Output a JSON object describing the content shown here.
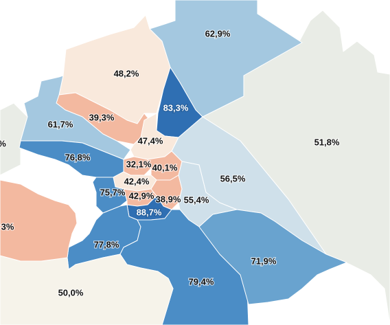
{
  "colors": {
    "neutral_gray": "#e9ece6",
    "neutral_cream": "#f6f3ea",
    "peach_light": "#f9e9dc",
    "salmon": "#f3b9a0",
    "light_blue": "#cfe0ea",
    "sky_blue": "#a4c8e0",
    "mid_blue": "#69a3cf",
    "blue": "#4b8dc6",
    "deep_blue": "#2f6fb3"
  },
  "districts": [
    {
      "id": "north-ne",
      "label": "62,9%",
      "color": "#a4c8e0",
      "text": "dark"
    },
    {
      "id": "east-large",
      "label": "51,8%",
      "color": "#e9ece6",
      "text": "dark"
    },
    {
      "id": "north-nw",
      "label": "48,2%",
      "color": "#f9e9dc",
      "text": "dark"
    },
    {
      "id": "north-center",
      "label": "83,3%",
      "color": "#2f6fb3",
      "text": "light"
    },
    {
      "id": "northwest-salmon",
      "label": "39,3%",
      "color": "#f3b9a0",
      "text": "dark"
    },
    {
      "id": "northwest-blue",
      "label": "61,7%",
      "color": "#a4c8e0",
      "text": "dark"
    },
    {
      "id": "center-north",
      "label": "47,4%",
      "color": "#f9e9dc",
      "text": "dark"
    },
    {
      "id": "west",
      "label": "76,8%",
      "color": "#4b8dc6",
      "text": "dark"
    },
    {
      "id": "inner-1",
      "label": "32,1%",
      "color": "#f3b9a0",
      "text": "dark"
    },
    {
      "id": "inner-2",
      "label": "40,1%",
      "color": "#f3b9a0",
      "text": "dark"
    },
    {
      "id": "inner-3",
      "label": "42,4%",
      "color": "#f9e9dc",
      "text": "dark"
    },
    {
      "id": "east-strip",
      "label": "56,5%",
      "color": "#cfe0ea",
      "text": "dark"
    },
    {
      "id": "west-inner",
      "label": "75,7%",
      "color": "#4b8dc6",
      "text": "dark"
    },
    {
      "id": "inner-4",
      "label": "42,9%",
      "color": "#f3b9a0",
      "text": "dark"
    },
    {
      "id": "inner-5",
      "label": "38,9%",
      "color": "#f3b9a0",
      "text": "dark"
    },
    {
      "id": "southeast-light",
      "label": "55,4%",
      "color": "#cfe0ea",
      "text": "dark"
    },
    {
      "id": "inner-south",
      "label": "88,7%",
      "color": "#2f6fb3",
      "text": "light"
    },
    {
      "id": "southwest-blue",
      "label": "77,8%",
      "color": "#4b8dc6",
      "text": "dark"
    },
    {
      "id": "southeast",
      "label": "71,9%",
      "color": "#69a3cf",
      "text": "dark"
    },
    {
      "id": "south",
      "label": "79,4%",
      "color": "#4b8dc6",
      "text": "dark"
    },
    {
      "id": "south-cream",
      "label": "50,0%",
      "color": "#f6f3ea",
      "text": "dark"
    },
    {
      "id": "west-edge-salmon",
      "label": "3%",
      "color": "#f3b9a0",
      "text": "dark"
    },
    {
      "id": "west-edge-gray",
      "label": "%",
      "color": "#e9ece6",
      "text": "dark"
    }
  ]
}
